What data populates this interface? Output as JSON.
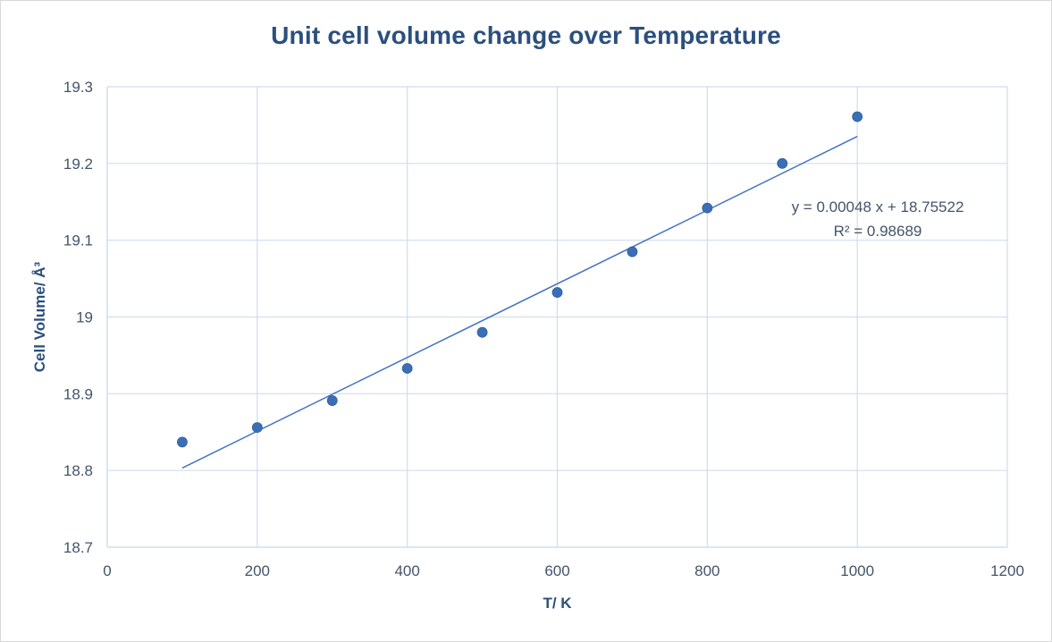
{
  "chart_data": {
    "type": "scatter",
    "title": "Unit cell volume change over Temperature",
    "xlabel": "T/ K",
    "ylabel": "Cell Volume/ Å³",
    "xlim": [
      0,
      1200
    ],
    "ylim": [
      18.7,
      19.3
    ],
    "x_ticks": [
      0,
      200,
      400,
      600,
      800,
      1000,
      1200
    ],
    "x_tick_labels": [
      "0",
      "200",
      "400",
      "600",
      "800",
      "1000",
      "1200"
    ],
    "y_ticks": [
      18.7,
      18.8,
      18.9,
      19.0,
      19.1,
      19.2,
      19.3
    ],
    "y_tick_labels": [
      "18.7",
      "18.8",
      "18.9",
      "19",
      "19.1",
      "19.2",
      "19.3"
    ],
    "grid": true,
    "series": [
      {
        "x": [
          100,
          200,
          300,
          400,
          500,
          600,
          700,
          800,
          900,
          1000
        ],
        "y": [
          18.837,
          18.856,
          18.891,
          18.933,
          18.98,
          19.032,
          19.085,
          19.142,
          19.2,
          19.261
        ]
      }
    ],
    "trendline": {
      "slope": 0.00048,
      "intercept": 18.75522,
      "x_range": [
        100,
        1000
      ],
      "equation_text": "y = 0.00048 x + 18.75522",
      "r2_text": "R² = 0.98689"
    },
    "colors": {
      "marker": "#3a6fb6",
      "trendline": "#4472c4",
      "grid": "#d0dded",
      "title": "#2b4f7e",
      "tick": "#44546a"
    }
  }
}
